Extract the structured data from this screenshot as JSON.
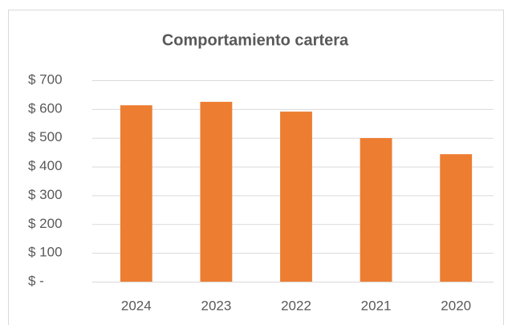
{
  "chart_data": {
    "type": "bar",
    "title": "Comportamiento cartera",
    "categories": [
      "2024",
      "2023",
      "2022",
      "2021",
      "2020"
    ],
    "values": [
      613,
      625,
      591,
      499,
      443
    ],
    "color": "#ed7d31",
    "ylim": [
      0,
      700
    ],
    "yticks": [
      {
        "value": 0,
        "label": "$ -"
      },
      {
        "value": 100,
        "label": "$ 100"
      },
      {
        "value": 200,
        "label": "$ 200"
      },
      {
        "value": 300,
        "label": "$ 300"
      },
      {
        "value": 400,
        "label": "$ 400"
      },
      {
        "value": 500,
        "label": "$ 500"
      },
      {
        "value": 600,
        "label": "$ 600"
      },
      {
        "value": 700,
        "label": "$ 700"
      }
    ],
    "grid": true
  }
}
